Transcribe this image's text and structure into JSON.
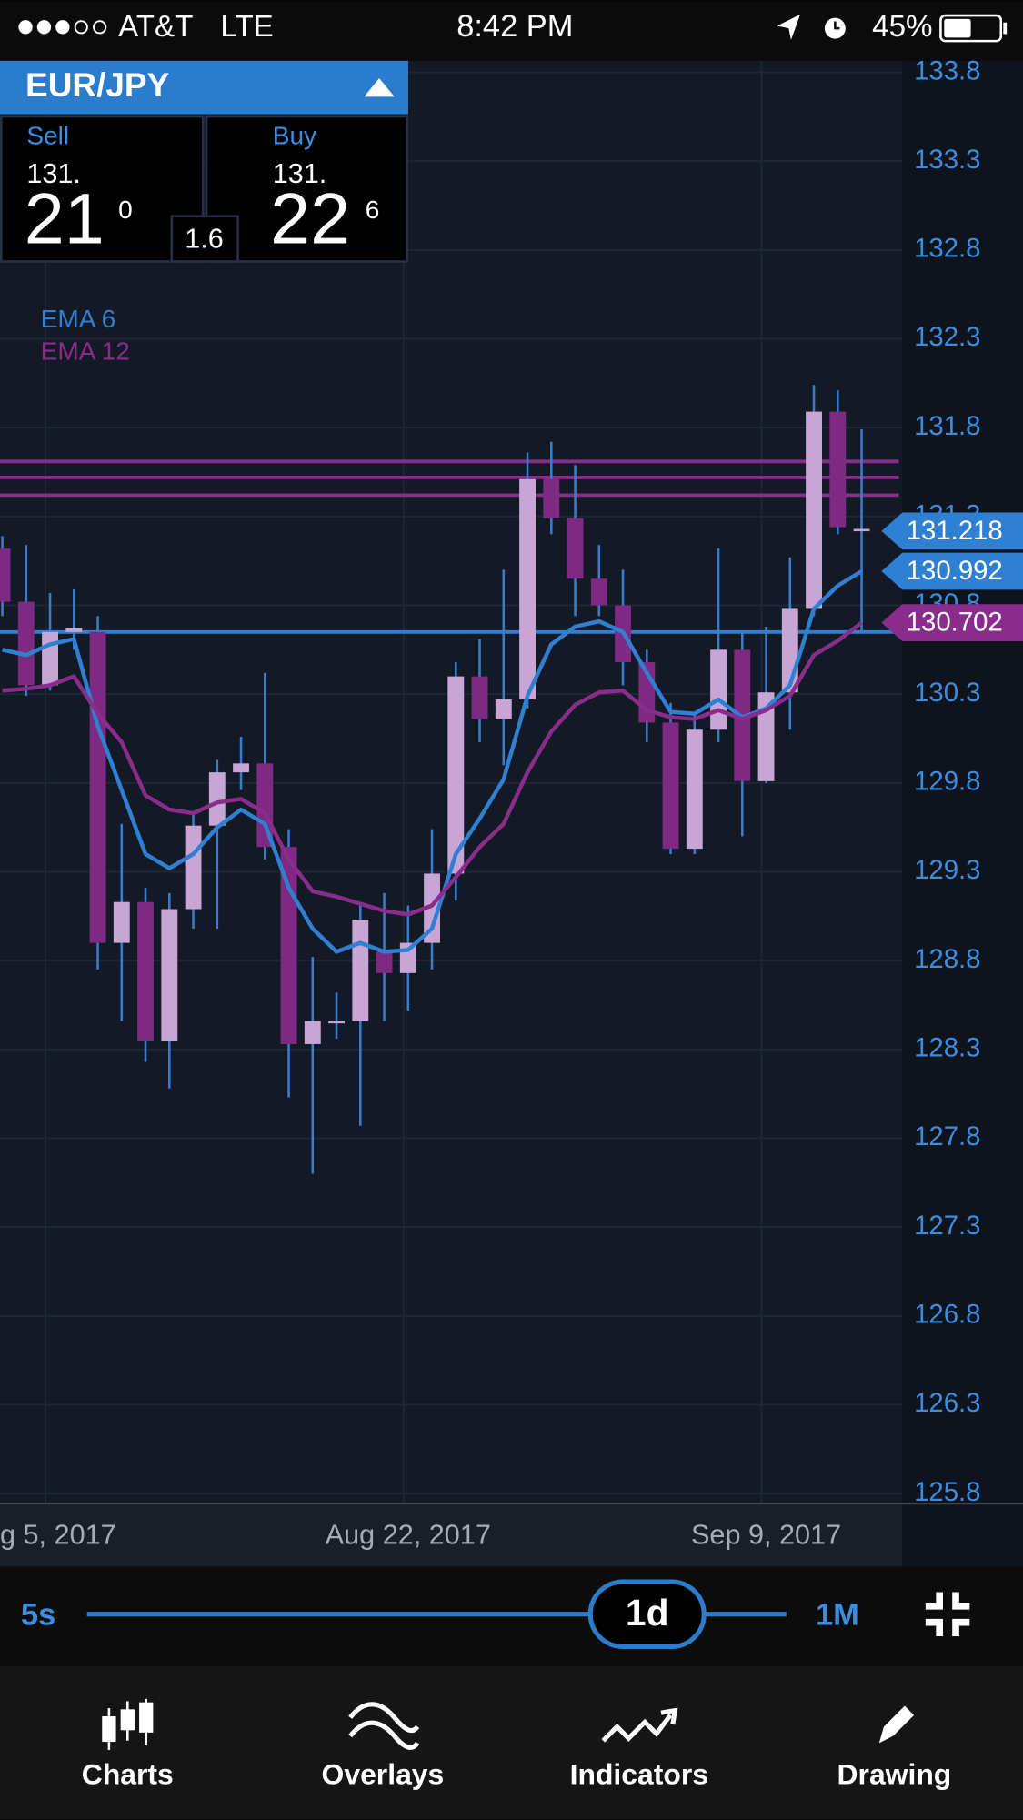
{
  "status_bar": {
    "carrier": "AT&T",
    "network": "LTE",
    "time": "8:42 PM",
    "battery": "45%"
  },
  "ticker": {
    "symbol": "EUR/JPY",
    "sell": {
      "label": "Sell",
      "big_figure": "131.",
      "pips": "21",
      "fraction": "0"
    },
    "spread": "1.6",
    "buy": {
      "label": "Buy",
      "big_figure": "131.",
      "pips": "22",
      "fraction": "6"
    }
  },
  "chart_data": {
    "type": "candlestick",
    "categories": [
      null,
      null,
      "g 5, 2017",
      null,
      null,
      null,
      null,
      null,
      null,
      null,
      null,
      null,
      null,
      null,
      null,
      null,
      null,
      "Aug 22, 2017",
      null,
      null,
      null,
      null,
      null,
      null,
      null,
      null,
      null,
      null,
      null,
      null,
      null,
      null,
      "Sep 9, 2017",
      null,
      null,
      null,
      null
    ],
    "open": [
      131.12,
      130.82,
      130.35,
      130.65,
      130.65,
      128.9,
      129.13,
      128.35,
      129.09,
      129.56,
      129.86,
      129.91,
      129.44,
      128.33,
      128.46,
      128.46,
      128.85,
      128.73,
      128.9,
      129.29,
      130.4,
      130.16,
      130.27,
      131.51,
      131.29,
      130.95,
      130.8,
      130.48,
      130.14,
      129.43,
      130.1,
      130.55,
      129.81,
      130.31,
      130.78,
      131.89,
      131.23
    ],
    "high": [
      131.19,
      131.14,
      130.87,
      130.89,
      130.74,
      129.57,
      129.21,
      129.18,
      129.63,
      129.93,
      130.06,
      130.42,
      129.54,
      128.82,
      128.62,
      129.11,
      129.18,
      129.11,
      129.54,
      130.48,
      130.61,
      131.0,
      131.66,
      131.72,
      131.59,
      131.14,
      131.0,
      130.55,
      130.25,
      130.19,
      131.12,
      130.65,
      130.68,
      131.07,
      132.04,
      132.01,
      131.79
    ],
    "low": [
      130.74,
      130.29,
      130.32,
      130.55,
      128.75,
      128.46,
      128.23,
      128.08,
      128.98,
      128.98,
      129.76,
      129.37,
      128.03,
      127.6,
      128.36,
      127.87,
      128.46,
      128.52,
      128.75,
      129.14,
      130.03,
      129.9,
      130.22,
      131.2,
      130.74,
      130.74,
      130.35,
      130.03,
      129.4,
      129.4,
      130.03,
      129.5,
      129.8,
      130.1,
      130.74,
      131.2,
      130.65
    ],
    "close": [
      130.82,
      130.35,
      130.65,
      130.67,
      128.9,
      129.13,
      128.35,
      129.09,
      129.56,
      129.86,
      129.91,
      129.44,
      128.33,
      128.46,
      128.46,
      129.03,
      128.73,
      128.9,
      129.29,
      130.4,
      130.16,
      130.27,
      131.51,
      131.29,
      130.95,
      130.8,
      130.48,
      130.14,
      129.43,
      130.1,
      130.55,
      129.81,
      130.31,
      130.78,
      131.89,
      131.24,
      131.23
    ],
    "rising_color": "#c7a6d6",
    "falling_color": "#7e2a82",
    "wick_color": "#3a7ccc",
    "series": [
      {
        "name": "EMA 6",
        "color": "#2f80d2",
        "values": [
          130.55,
          130.52,
          130.58,
          130.61,
          130.12,
          129.76,
          129.4,
          129.32,
          129.4,
          129.55,
          129.65,
          129.57,
          129.21,
          128.98,
          128.85,
          128.9,
          128.85,
          128.86,
          128.98,
          129.4,
          129.6,
          129.82,
          130.29,
          130.58,
          130.68,
          130.71,
          130.65,
          130.42,
          130.2,
          130.19,
          130.27,
          130.17,
          130.22,
          130.35,
          130.78,
          130.91,
          130.992
        ]
      },
      {
        "name": "EMA 12",
        "color": "#8a2c8c",
        "values": [
          130.32,
          130.33,
          130.35,
          130.4,
          130.19,
          130.03,
          129.73,
          129.65,
          129.63,
          129.69,
          129.71,
          129.63,
          129.37,
          129.19,
          129.16,
          129.12,
          129.08,
          129.06,
          129.11,
          129.27,
          129.44,
          129.57,
          129.86,
          130.09,
          130.24,
          130.31,
          130.32,
          130.21,
          130.17,
          130.16,
          130.21,
          130.16,
          130.21,
          130.29,
          130.52,
          130.6,
          130.702
        ]
      }
    ],
    "hlines": [
      {
        "value": 131.61,
        "color": "#8a2c8c"
      },
      {
        "value": 131.52,
        "color": "#8a2c8c"
      },
      {
        "value": 131.42,
        "color": "#8a2c8c"
      },
      {
        "value": 130.65,
        "color": "#2f80d2"
      }
    ],
    "price_tags": [
      {
        "value": 131.218,
        "color": "#2f80d2"
      },
      {
        "value": 130.992,
        "color": "#2f80d2"
      },
      {
        "value": 130.702,
        "color": "#8a2c8c"
      }
    ],
    "ylim": [
      125.748,
      133.865
    ],
    "yticks": [
      133.8,
      133.3,
      132.8,
      132.3,
      131.8,
      131.3,
      130.8,
      130.3,
      129.8,
      129.3,
      128.8,
      128.3,
      127.8,
      127.3,
      126.8,
      126.3,
      125.8
    ],
    "grid": true
  },
  "timeframe": {
    "min": "5s",
    "current": "1d",
    "max": "1M"
  },
  "tabs": [
    "Charts",
    "Overlays",
    "Indicators",
    "Drawing"
  ]
}
